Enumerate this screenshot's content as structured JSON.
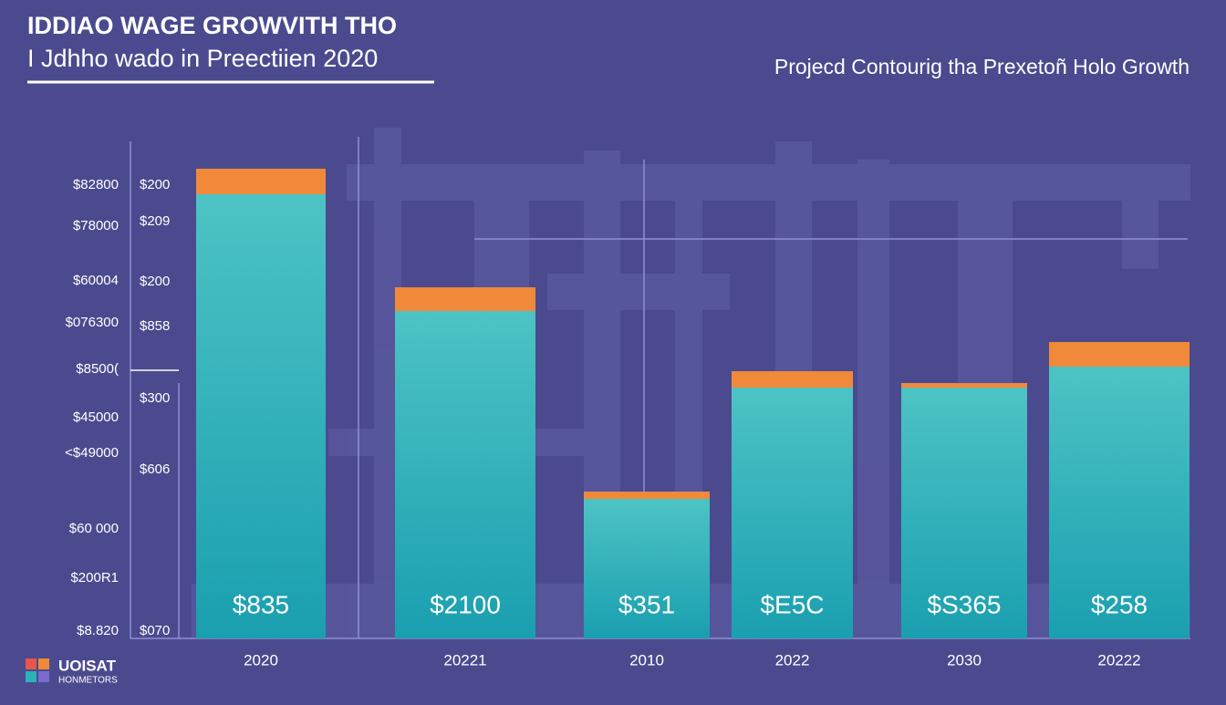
{
  "chart_data": {
    "type": "bar",
    "title": "IDDIAO WAGE GROWVITH THO",
    "subtitle": "I Jdhho wado in Preectiien 2020",
    "annotation": "Projecd Contourig tha Prexetoñ Holo Growth",
    "axis_labels_outer": [
      "$82800",
      "$78000",
      "$60004",
      "$076300",
      "$8500(",
      "$45000",
      "<$49000",
      "$60 000",
      "$200R1",
      "$8.820"
    ],
    "axis_labels_inner": [
      "$200",
      "$209",
      "$200",
      "$858",
      "$300",
      "$606",
      "$070"
    ],
    "categories": [
      "2020",
      "20221",
      "2010",
      "2022",
      "2030",
      "20222"
    ],
    "bar_labels": [
      "$835",
      "$2100",
      "$351",
      "$E5C",
      "$S365",
      "$258"
    ],
    "ylim": [
      0,
      550
    ],
    "series": [
      {
        "color": "#2bb3b8",
        "values": [
          487,
          359,
          153,
          275,
          275,
          298
        ]
      },
      {
        "color": "#f0893a",
        "values": [
          28,
          26,
          8,
          18,
          5,
          27
        ]
      }
    ],
    "logo": {
      "name": "UOISAT",
      "tagline": "HONMETORS"
    }
  }
}
